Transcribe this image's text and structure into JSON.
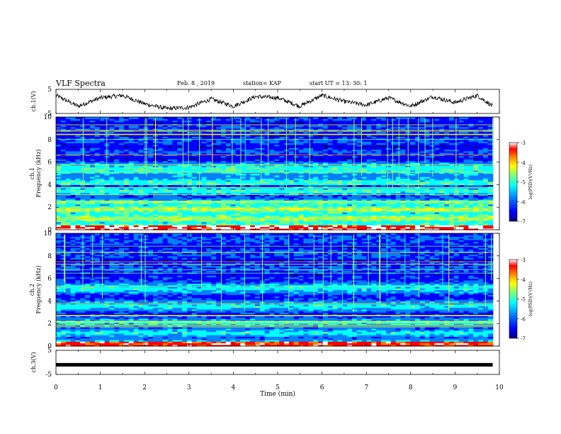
{
  "header": {
    "title": "VLF Spectra",
    "date": "Feb. 8 , 2019",
    "station": "station= KAP",
    "start": "start UT = 13: 30: 1"
  },
  "chart_data": [
    {
      "type": "line",
      "panel": "ch1-waveform",
      "ylabel": "ch.1(V)",
      "ylim": [
        -5,
        5
      ],
      "yticks": [
        "5",
        "-5"
      ],
      "x_unit": "min",
      "xlim": [
        0,
        10
      ],
      "data_end_x": 9.85,
      "series": [
        {
          "x": [
            0,
            0.5,
            1,
            1.5,
            2,
            2.5,
            3,
            3.5,
            4,
            4.5,
            5,
            5.5,
            6,
            6.5,
            7,
            7.5,
            8,
            8.5,
            9,
            9.5,
            9.85
          ],
          "values": [
            2.5,
            -2,
            1.5,
            2.5,
            -1,
            -3,
            -2.5,
            1,
            -2,
            2,
            1.5,
            -2,
            2.5,
            0,
            -1.5,
            1.5,
            -2,
            2,
            -0.5,
            2.5,
            -2
          ]
        }
      ]
    },
    {
      "type": "heatmap",
      "panel": "ch1-spectrogram",
      "ylabel": "ch.1\nFrequency (kHz)",
      "ylim": [
        0,
        10
      ],
      "yticks": [
        "0",
        "2",
        "4",
        "6",
        "8",
        "10"
      ],
      "xlim": [
        0,
        10
      ],
      "data_end_x": 9.85,
      "colorbar": {
        "label": "log(PSD)(V²/Hz)",
        "range": [
          -7,
          -3
        ],
        "ticks": [
          "-3",
          "-4",
          "-5",
          "-6",
          "-7"
        ]
      }
    },
    {
      "type": "heatmap",
      "panel": "ch2-spectrogram",
      "ylabel": "ch.2\nFrequency (kHz)",
      "ylim": [
        0,
        10
      ],
      "yticks": [
        "0",
        "2",
        "4",
        "6",
        "8",
        "10"
      ],
      "xlim": [
        0,
        10
      ],
      "data_end_x": 9.85,
      "colorbar": {
        "label": "log(PSD)(V²/Hz)",
        "range": [
          -7,
          -3
        ],
        "ticks": [
          "-3",
          "-4",
          "-5",
          "-6",
          "-7"
        ]
      }
    },
    {
      "type": "line",
      "panel": "ch3-waveform",
      "ylabel": "ch.3(V)",
      "ylim": [
        -5,
        5
      ],
      "yticks": [
        "5",
        "-5"
      ],
      "xlim": [
        0,
        10
      ],
      "data_end_x": 9.85,
      "series": [
        {
          "x": [
            0,
            9.85
          ],
          "values": [
            -1,
            -1
          ]
        }
      ]
    }
  ],
  "xaxis": {
    "label": "Time (min)",
    "ticks": [
      "0",
      "1",
      "2",
      "3",
      "4",
      "5",
      "6",
      "7",
      "8",
      "9",
      "10"
    ]
  },
  "palette": {
    "jet": [
      "#00007f",
      "#0000ff",
      "#007fff",
      "#00ffff",
      "#7fff7f",
      "#ffff00",
      "#ff7f00",
      "#ff0000",
      "#ffffff"
    ]
  }
}
